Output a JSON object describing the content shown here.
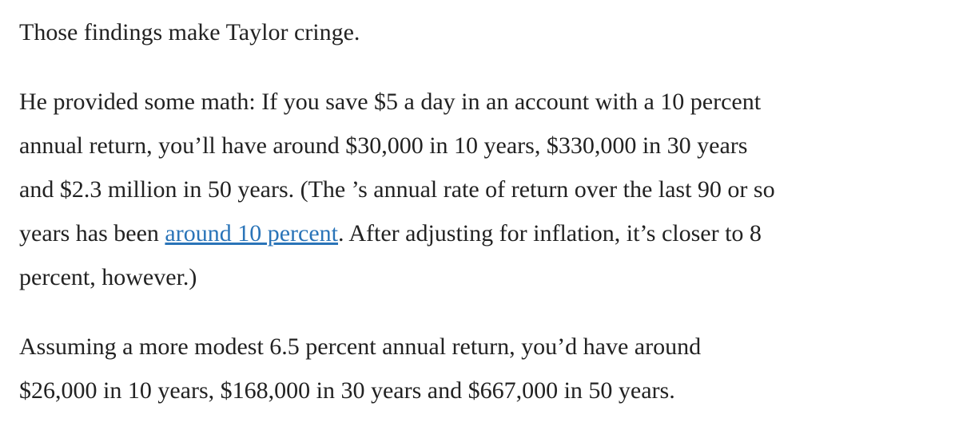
{
  "paragraphs": [
    {
      "lines": [
        "Those findings make Taylor cringe."
      ]
    },
    {
      "lines": [
        "He provided some math: If you save $5 a day in an account with a 10 percent",
        "annual return, you’ll have around $30,000 in 10 years, $330,000 in 30 years",
        "and $2.3 million in 50 years. (The ’s annual rate of return over the last 90 or so",
        {
          "before": "years has been ",
          "link": "around 10 percent",
          "after": ". After adjusting for inflation, it’s closer to 8"
        },
        "percent, however.)"
      ]
    },
    {
      "lines": [
        "Assuming a more modest 6.5 percent annual return, you’d have around",
        "$26,000 in 10 years, $168,000 in 30 years and $667,000 in 50 years."
      ]
    }
  ]
}
